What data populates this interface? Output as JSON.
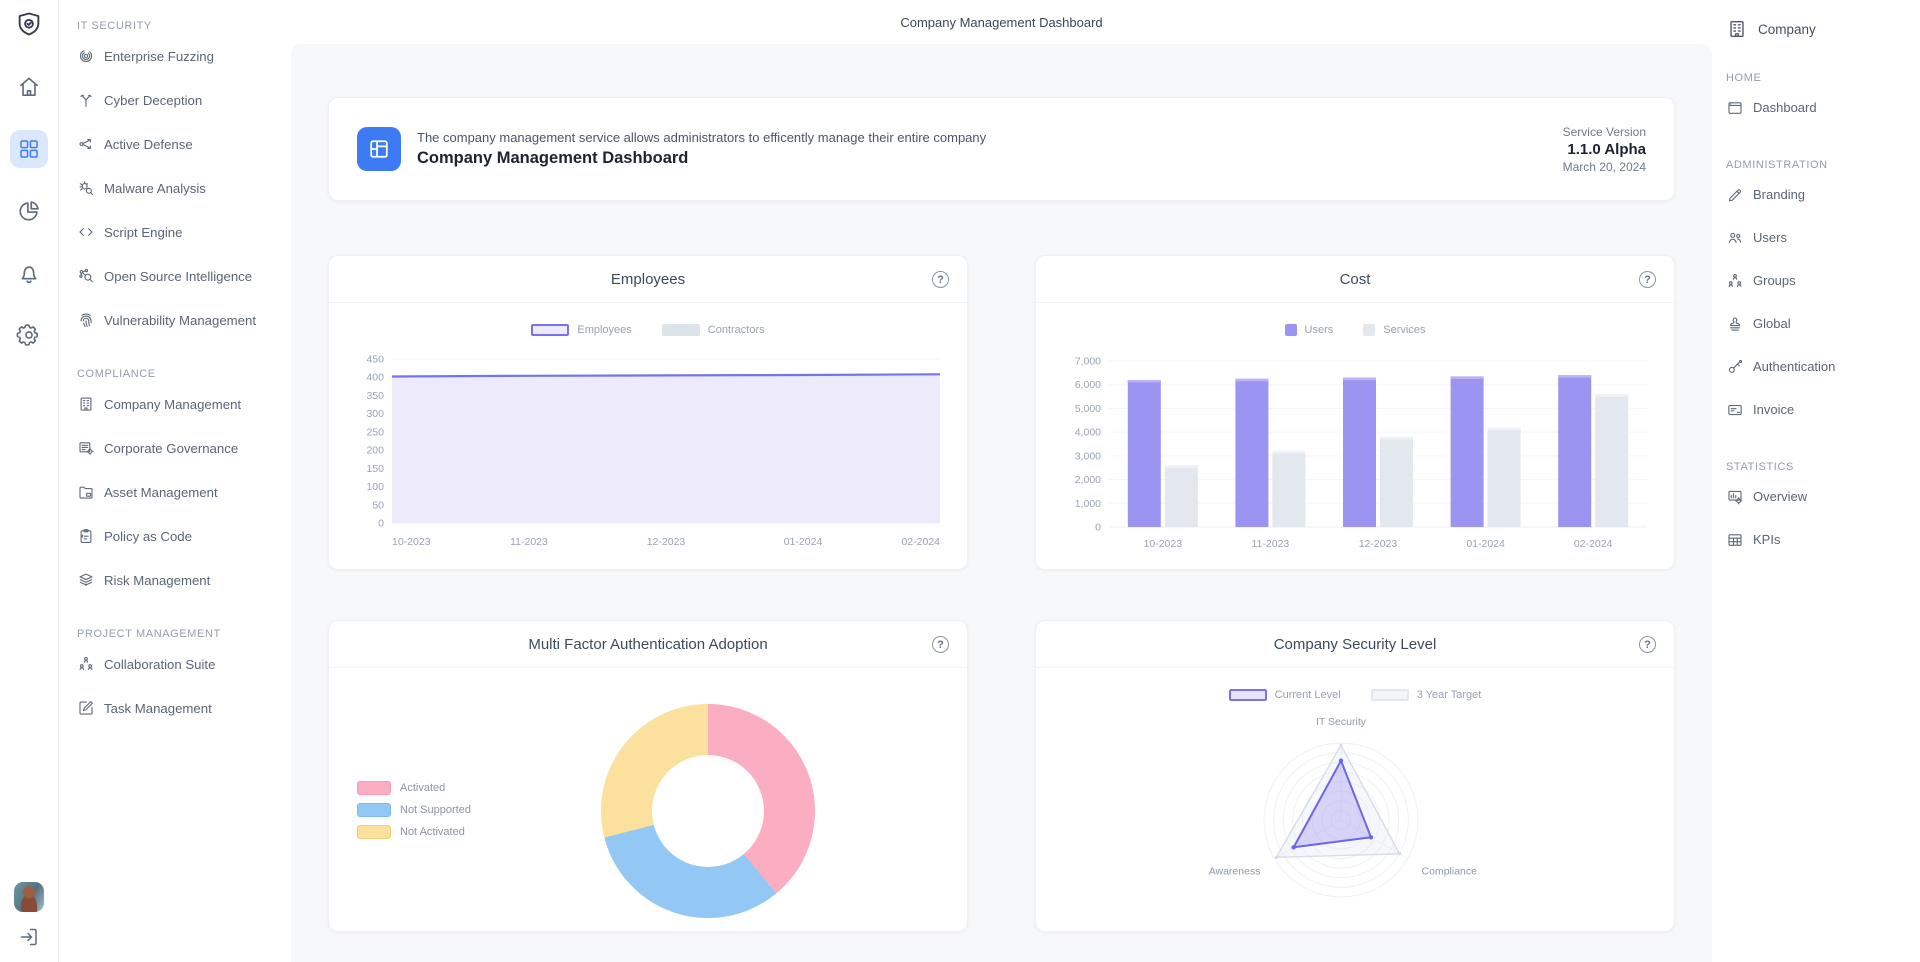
{
  "app": {
    "header_title": "Company Management Dashboard",
    "help_glyph": "?"
  },
  "rail": {
    "items": [
      {
        "icon": "shield-logo",
        "active": false
      },
      {
        "icon": "home",
        "active": false
      },
      {
        "icon": "apps-grid",
        "active": true
      },
      {
        "icon": "pie-chart",
        "active": false
      },
      {
        "icon": "bell",
        "active": false
      },
      {
        "icon": "gear",
        "active": false
      }
    ],
    "bottom_icons": [
      "avatar",
      "logout"
    ]
  },
  "left_sidebar": {
    "sections": [
      {
        "title": "IT SECURITY",
        "items": [
          {
            "label": "Enterprise Fuzzing",
            "icon": "target"
          },
          {
            "label": "Cyber Deception",
            "icon": "branch"
          },
          {
            "label": "Active Defense",
            "icon": "route"
          },
          {
            "label": "Malware Analysis",
            "icon": "bug-search"
          },
          {
            "label": "Script Engine",
            "icon": "code"
          },
          {
            "label": "Open Source Intelligence",
            "icon": "search-network"
          },
          {
            "label": "Vulnerability Management",
            "icon": "fingerprint"
          }
        ]
      },
      {
        "title": "COMPLIANCE",
        "items": [
          {
            "label": "Company Management",
            "icon": "building"
          },
          {
            "label": "Corporate Governance",
            "icon": "list-gear"
          },
          {
            "label": "Asset Management",
            "icon": "folder"
          },
          {
            "label": "Policy as Code",
            "icon": "clipboard"
          },
          {
            "label": "Risk Management",
            "icon": "layers"
          }
        ]
      },
      {
        "title": "PROJECT MANAGEMENT",
        "items": [
          {
            "label": "Collaboration Suite",
            "icon": "org-people"
          },
          {
            "label": "Task Management",
            "icon": "edit-square"
          }
        ]
      }
    ]
  },
  "right_sidebar": {
    "company": {
      "label": "Company",
      "icon": "building"
    },
    "sections": [
      {
        "title": "HOME",
        "items": [
          {
            "label": "Dashboard",
            "icon": "window"
          }
        ]
      },
      {
        "title": "ADMINISTRATION",
        "items": [
          {
            "label": "Branding",
            "icon": "pen"
          },
          {
            "label": "Users",
            "icon": "users"
          },
          {
            "label": "Groups",
            "icon": "org-people"
          },
          {
            "label": "Global",
            "icon": "stamp"
          },
          {
            "label": "Authentication",
            "icon": "key"
          },
          {
            "label": "Invoice",
            "icon": "card"
          }
        ]
      },
      {
        "title": "STATISTICS",
        "items": [
          {
            "label": "Overview",
            "icon": "monitor-gear"
          },
          {
            "label": "KPIs",
            "icon": "table"
          }
        ]
      }
    ]
  },
  "banner": {
    "icon": "dashboard-tile",
    "description": "The company management service allows administrators to efficently manage their entire company",
    "title": "Company Management Dashboard",
    "service_version_label": "Service Version",
    "version": "1.1.0 Alpha",
    "date": "March 20, 2024"
  },
  "chart_data": [
    {
      "id": "employees",
      "type": "area",
      "title": "Employees",
      "x": [
        "10-2023",
        "11-2023",
        "12-2023",
        "01-2024",
        "02-2024"
      ],
      "series": [
        {
          "name": "Employees",
          "values": [
            402,
            404,
            405,
            406,
            408
          ],
          "color": "#7b71e9",
          "fill": "#eceafb",
          "legend_bg": "#eceafc"
        },
        {
          "name": "Contractors",
          "values": [
            12,
            13,
            13,
            14,
            15
          ],
          "color": "#c7d0da",
          "fill": "#edf1f5",
          "legend_bg": "#dde3ea"
        }
      ],
      "ylim": [
        0,
        450
      ],
      "ytick_labels": [
        "0",
        "50",
        "100",
        "150",
        "200",
        "250",
        "300",
        "350",
        "400",
        "450"
      ],
      "legend_position": "top",
      "grid": true
    },
    {
      "id": "cost",
      "type": "bar",
      "title": "Cost",
      "x": [
        "10-2023",
        "11-2023",
        "12-2023",
        "01-2024",
        "02-2024"
      ],
      "series": [
        {
          "name": "Users",
          "values": [
            6200,
            6250,
            6300,
            6350,
            6400
          ],
          "color": "#9b94f0",
          "cap": "#bab4f6"
        },
        {
          "name": "Services",
          "values": [
            2600,
            3200,
            3800,
            4200,
            5600
          ],
          "color": "#e2e8ee",
          "cap": "#eef2f6"
        }
      ],
      "ylim": [
        0,
        7000
      ],
      "ytick_labels": [
        "0",
        "1,000",
        "2,000",
        "3,000",
        "4,000",
        "5,000",
        "6,000",
        "7,000"
      ],
      "legend_position": "top",
      "grid": true
    },
    {
      "id": "mfa",
      "type": "donut",
      "title": "Multi Factor Authentication Adoption",
      "slices": [
        {
          "label": "Activated",
          "value": 39,
          "color": "#fbadc1",
          "border": "#f79cb2"
        },
        {
          "label": "Not Supported",
          "value": 32,
          "color": "#92c8f3",
          "border": "#7dbcef"
        },
        {
          "label": "Not Activated",
          "value": 29,
          "color": "#fbe09e",
          "border": "#f2cf7c"
        }
      ],
      "legend_position": "left"
    },
    {
      "id": "security",
      "type": "radar",
      "title": "Company Security Level",
      "axes": [
        "IT Security",
        "Compliance",
        "Awareness"
      ],
      "max": 100,
      "series": [
        {
          "name": "Current Level",
          "values": [
            77,
            45,
            71
          ],
          "color": "#6f66e4",
          "fill": "rgba(138,130,238,0.30)",
          "legend_bg": "#e6e3fb",
          "legend_border": "#7b71e9"
        },
        {
          "name": "3 Year Target",
          "values": [
            97,
            88,
            97
          ],
          "color": "#d7dde6",
          "fill": "rgba(228,233,240,0.35)",
          "legend_bg": "#f3f6f9",
          "legend_border": "#e2e8ef"
        }
      ],
      "legend_position": "top",
      "rings": 8
    }
  ]
}
